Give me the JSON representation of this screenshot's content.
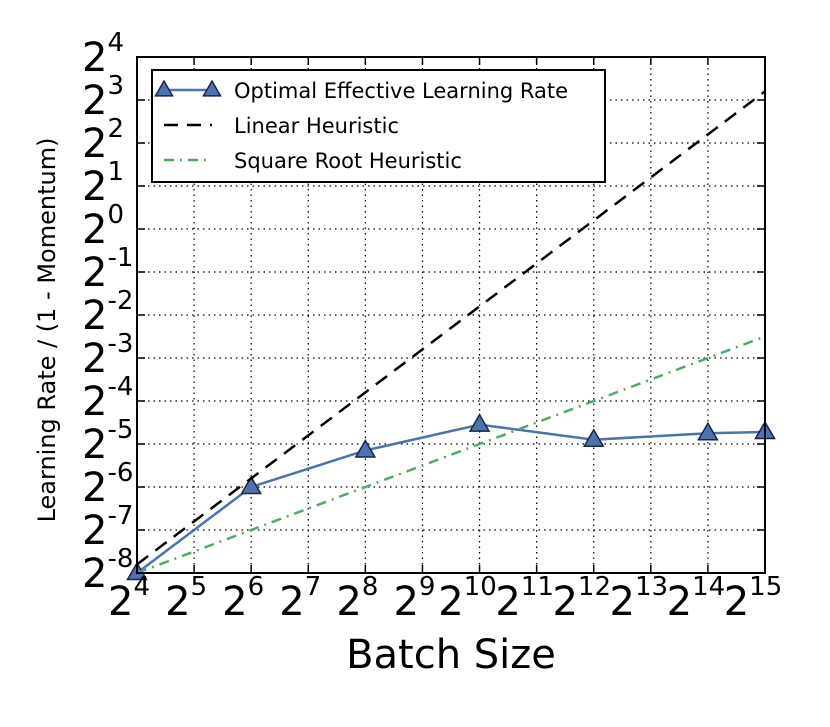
{
  "chart_data": {
    "type": "line",
    "title": "",
    "xlabel": "Batch Size",
    "ylabel": "Learning Rate / (1 - Momentum)",
    "x_scale": "log2",
    "y_scale": "log2",
    "xlim_exp": [
      4,
      15
    ],
    "ylim_exp": [
      -8,
      4
    ],
    "x_ticks": [
      {
        "base": "2",
        "exp": "4"
      },
      {
        "base": "2",
        "exp": "5"
      },
      {
        "base": "2",
        "exp": "6"
      },
      {
        "base": "2",
        "exp": "7"
      },
      {
        "base": "2",
        "exp": "8"
      },
      {
        "base": "2",
        "exp": "9"
      },
      {
        "base": "2",
        "exp": "10"
      },
      {
        "base": "2",
        "exp": "11"
      },
      {
        "base": "2",
        "exp": "12"
      },
      {
        "base": "2",
        "exp": "13"
      },
      {
        "base": "2",
        "exp": "14"
      },
      {
        "base": "2",
        "exp": "15"
      }
    ],
    "y_ticks": [
      {
        "base": "2",
        "exp": "-8"
      },
      {
        "base": "2",
        "exp": "-7"
      },
      {
        "base": "2",
        "exp": "-6"
      },
      {
        "base": "2",
        "exp": "-5"
      },
      {
        "base": "2",
        "exp": "-4"
      },
      {
        "base": "2",
        "exp": "-3"
      },
      {
        "base": "2",
        "exp": "-2"
      },
      {
        "base": "2",
        "exp": "-1"
      },
      {
        "base": "2",
        "exp": "0"
      },
      {
        "base": "2",
        "exp": "1"
      },
      {
        "base": "2",
        "exp": "2"
      },
      {
        "base": "2",
        "exp": "3"
      },
      {
        "base": "2",
        "exp": "4"
      }
    ],
    "grid": true,
    "legend_position": "top-left",
    "series": [
      {
        "name": "Optimal Effective Learning Rate",
        "style": "solid",
        "marker": "triangle",
        "color": "#4c72b0",
        "marker_color": "#4c72b0",
        "x_exp": [
          4,
          6,
          8,
          10,
          12,
          14,
          15
        ],
        "y_exp": [
          -8.0,
          -6.0,
          -5.15,
          -4.55,
          -4.9,
          -4.75,
          -4.72
        ]
      },
      {
        "name": "Linear Heuristic",
        "style": "dashed",
        "color": "#000000",
        "x_exp": [
          4,
          15
        ],
        "y_exp": [
          -7.8,
          3.2
        ]
      },
      {
        "name": "Square Root Heuristic",
        "style": "dashdot",
        "color": "#55a868",
        "x_exp": [
          4,
          15
        ],
        "y_exp": [
          -8.0,
          -2.5
        ]
      }
    ]
  }
}
